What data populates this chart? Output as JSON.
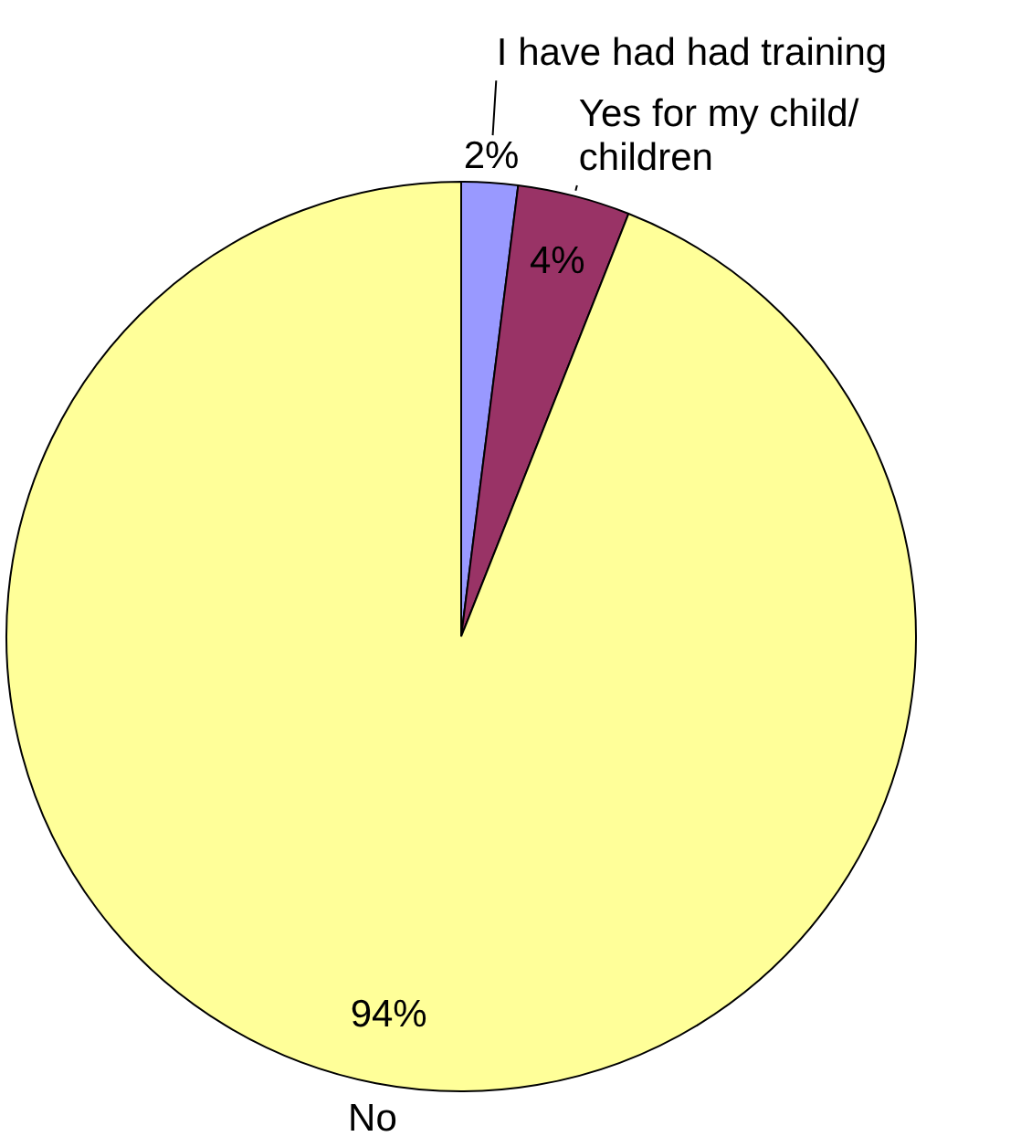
{
  "chart_data": {
    "type": "pie",
    "categories": [
      "I have had had training",
      "Yes for my child/ children",
      "No"
    ],
    "values": [
      2,
      4,
      94
    ],
    "colors": [
      "#9999ff",
      "#993366",
      "#ffff99"
    ],
    "value_labels": [
      "2%",
      "4%",
      "94%"
    ],
    "legend": false
  }
}
